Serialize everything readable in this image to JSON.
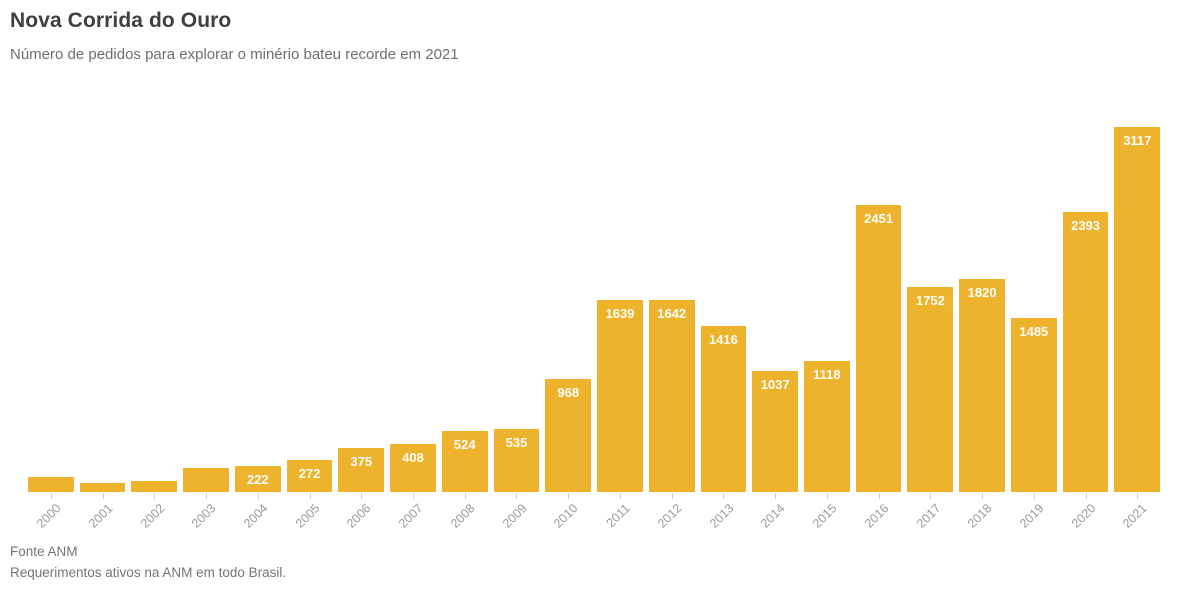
{
  "header": {
    "title": "Nova Corrida do Ouro",
    "subtitle": "Número de pedidos para explorar o minério bateu recorde em 2021"
  },
  "chart_data": {
    "type": "bar",
    "title": "Nova Corrida do Ouro",
    "subtitle": "Número de pedidos para explorar o minério bateu recorde em 2021",
    "categories": [
      "2000",
      "2001",
      "2002",
      "2003",
      "2004",
      "2005",
      "2006",
      "2007",
      "2008",
      "2009",
      "2010",
      "2011",
      "2012",
      "2013",
      "2014",
      "2015",
      "2016",
      "2017",
      "2018",
      "2019",
      "2020",
      "2021"
    ],
    "values": [
      125,
      73,
      95,
      205,
      222,
      272,
      375,
      408,
      524,
      535,
      968,
      1639,
      1642,
      1416,
      1037,
      1118,
      2451,
      1752,
      1820,
      1485,
      2393,
      3117
    ],
    "bar_labels": [
      "",
      "",
      "",
      "",
      "222",
      "272",
      "375",
      "408",
      "524",
      "535",
      "968",
      "1639",
      "1642",
      "1416",
      "1037",
      "1118",
      "2451",
      "1752",
      "1820",
      "1485",
      "2393",
      "3117"
    ],
    "xlabel": "",
    "ylabel": "",
    "ylim": [
      0,
      3117
    ],
    "grid": false,
    "legend": "none",
    "bar_color": "#edb32d"
  },
  "footer": {
    "source": "Fonte ANM",
    "note": "Requerimentos ativos na ANM em todo Brasil."
  },
  "colors": {
    "bar": "#edb32d",
    "bar_label": "#fffdf8",
    "title": "#3f3f3f",
    "subtitle": "#6e6e6e",
    "axis_label": "#9b9b9b",
    "tick": "#cfcfcf",
    "footer": "#757575",
    "background": "#ffffff"
  }
}
